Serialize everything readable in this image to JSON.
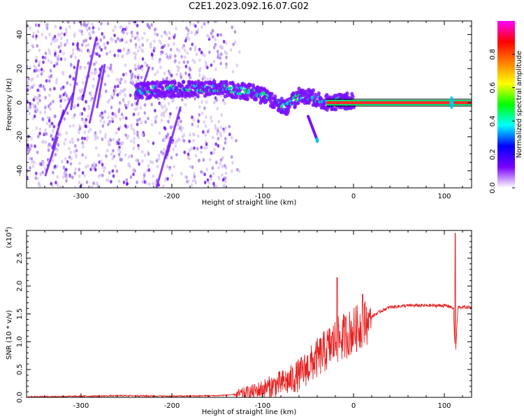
{
  "title": "C2E1.2023.092.16.07.G02",
  "chart_data": [
    {
      "type": "heatmap",
      "xlabel": "Height of straight line (km)",
      "ylabel": "Frequency (Hz)",
      "xlim": [
        -360,
        130
      ],
      "ylim": [
        -50,
        48
      ],
      "xticks": [
        -300,
        -200,
        -100,
        0,
        100
      ],
      "xtick_labels": [
        "-300",
        "-200",
        "-100",
        "0",
        "100"
      ],
      "yticks": [
        -40,
        -20,
        0,
        20,
        40
      ],
      "ytick_labels": [
        "-40",
        "-20",
        "0",
        "20",
        "40"
      ],
      "colorbar": {
        "label": "Normalized spectral amplitude",
        "range": [
          0,
          1
        ],
        "ticks": [
          0,
          0.2,
          0.4,
          0.6,
          0.8
        ],
        "tick_labels": [
          "0.0",
          "0.2",
          "0.4",
          "0.6",
          "0.8"
        ],
        "colormap": [
          "#ffffff",
          "#7b00ff",
          "#0000ff",
          "#00ffff",
          "#00ff00",
          "#ffff00",
          "#ff8000",
          "#ff0000",
          "#ff00ff"
        ]
      },
      "features": {
        "noise_extent_km": [
          -360,
          -125
        ],
        "ridge": [
          [
            -240,
            7
          ],
          [
            -200,
            8
          ],
          [
            -170,
            8
          ],
          [
            -140,
            8
          ],
          [
            -110,
            6
          ],
          [
            -90,
            2
          ],
          [
            -75,
            -3
          ],
          [
            -60,
            4
          ],
          [
            -45,
            3
          ],
          [
            -30,
            0
          ],
          [
            -10,
            1
          ],
          [
            0,
            1
          ]
        ],
        "branch": [
          [
            -50,
            -8
          ],
          [
            -40,
            -22
          ]
        ],
        "line_level": 0,
        "line_from_km": -30,
        "spike_km": 108
      },
      "grid": false
    },
    {
      "type": "line",
      "xlabel": "Height of straight line (km)",
      "ylabel": "SNR (10 * v/v)",
      "y_multiplier": "(x10",
      "y_multiplier_exp": "4",
      "y_multiplier_close": ")",
      "xlim": [
        -360,
        130
      ],
      "ylim": [
        0,
        3.0
      ],
      "xticks": [
        -300,
        -200,
        -100,
        0,
        100
      ],
      "xtick_labels": [
        "-300",
        "-200",
        "-100",
        "0",
        "100"
      ],
      "yticks": [
        0,
        0.5,
        1.0,
        1.5,
        2.0,
        2.5
      ],
      "ytick_labels": [
        "0.0",
        "0.5",
        "1.0",
        "1.5",
        "2.0",
        "2.5"
      ],
      "series_color": "#e62020",
      "series": [
        {
          "x": [
            -360,
            -300,
            -250,
            -200,
            -150,
            -130,
            -110,
            -90,
            -70,
            -60,
            -50,
            -40,
            -30,
            -20,
            -10,
            0,
            10,
            20,
            30,
            40,
            60,
            80,
            100,
            105,
            110,
            112,
            115,
            130
          ],
          "y": [
            0.01,
            0.02,
            0.03,
            0.02,
            0.03,
            0.05,
            0.1,
            0.2,
            0.3,
            0.4,
            0.55,
            0.7,
            0.85,
            1.0,
            1.1,
            1.2,
            1.3,
            1.45,
            1.55,
            1.62,
            1.65,
            1.65,
            1.65,
            1.64,
            1.6,
            0.7,
            1.62,
            1.62
          ]
        }
      ],
      "spikes": [
        [
          -18,
          2.15
        ],
        [
          10,
          1.85
        ],
        [
          112,
          2.95
        ]
      ],
      "grid": false
    }
  ]
}
